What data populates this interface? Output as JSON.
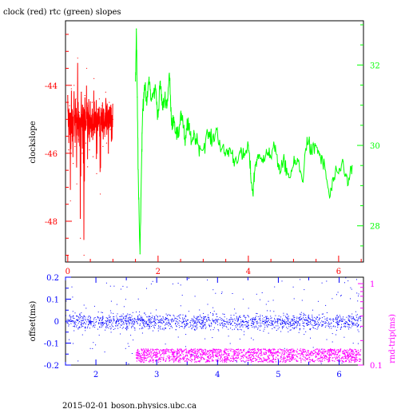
{
  "footer": "2015-02-01 boson.physics.ubc.ca",
  "colors": {
    "red": "#ff0000",
    "green": "#00ff00",
    "blue": "#0000ff",
    "magenta": "#ff00ff",
    "black": "#000000"
  },
  "chart_data": [
    {
      "type": "line",
      "title": "clock (red) rtc (green) slopes",
      "ylabel": "clockslope",
      "xlim": [
        -0.05,
        6.55
      ],
      "ylim": [
        -49.2,
        -42.1
      ],
      "y2lim": [
        27.1,
        33.1
      ],
      "xticks": [
        "0",
        "2",
        "4",
        "6"
      ],
      "yticks": [
        "-44",
        "-46",
        "-48"
      ],
      "y2ticks": [
        "32",
        "30",
        "28"
      ],
      "series": [
        {
          "color": "red",
          "axis": "left",
          "x": [
            0.0,
            0.02,
            0.04,
            0.06,
            0.08,
            0.1,
            0.12,
            0.14,
            0.16,
            0.18,
            0.2,
            0.22,
            0.24,
            0.26,
            0.28,
            0.3,
            0.32,
            0.34,
            0.36,
            0.38,
            0.4,
            0.42,
            0.44,
            0.46,
            0.48,
            0.5,
            0.52,
            0.54,
            0.56,
            0.58,
            0.6,
            0.62,
            0.64,
            0.66,
            0.68,
            0.7,
            0.72,
            0.74,
            0.76,
            0.78,
            0.8,
            0.82,
            0.84,
            0.86,
            0.88,
            0.9,
            0.92,
            0.94,
            0.96,
            0.98,
            1.0
          ],
          "y": [
            -44.3,
            -45.9,
            -44.6,
            -47.4,
            -44.1,
            -45.5,
            -46.3,
            -44.0,
            -45.8,
            -44.4,
            -46.9,
            -43.2,
            -45.6,
            -44.8,
            -48.5,
            -44.2,
            -46.0,
            -45.1,
            -49.0,
            -44.3,
            -45.7,
            -43.5,
            -46.4,
            -44.6,
            -45.9,
            -44.9,
            -45.3,
            -44.5,
            -46.1,
            -43.8,
            -45.4,
            -45.0,
            -46.6,
            -44.7,
            -45.2,
            -44.4,
            -47.2,
            -45.0,
            -44.6,
            -45.8,
            -44.9,
            -45.5,
            -44.2,
            -45.7,
            -44.8,
            -46.0,
            -44.5,
            -45.3,
            -44.9,
            -45.6,
            -45.0
          ]
        },
        {
          "color": "green",
          "axis": "right",
          "x": [
            1.5,
            1.52,
            1.54,
            1.56,
            1.6,
            1.64,
            1.66,
            1.7,
            1.75,
            1.8,
            1.85,
            1.9,
            1.95,
            2.0,
            2.05,
            2.1,
            2.15,
            2.2,
            2.25,
            2.3,
            2.35,
            2.4,
            2.45,
            2.5,
            2.55,
            2.6,
            2.65,
            2.7,
            2.75,
            2.8,
            2.9,
            3.0,
            3.1,
            3.2,
            3.3,
            3.4,
            3.5,
            3.6,
            3.7,
            3.8,
            3.9,
            4.0,
            4.05,
            4.1,
            4.15,
            4.2,
            4.3,
            4.4,
            4.5,
            4.6,
            4.7,
            4.8,
            4.9,
            5.0,
            5.1,
            5.2,
            5.3,
            5.4,
            5.5,
            5.6,
            5.7,
            5.8,
            5.9,
            6.0,
            6.1,
            6.2,
            6.3
          ],
          "y": [
            31.6,
            32.9,
            31.2,
            29.4,
            27.3,
            29.9,
            30.9,
            31.5,
            31.0,
            31.7,
            31.1,
            31.3,
            31.4,
            30.7,
            31.6,
            30.9,
            31.2,
            31.0,
            31.8,
            30.5,
            30.7,
            30.3,
            30.2,
            30.8,
            30.6,
            30.0,
            30.6,
            30.3,
            30.1,
            30.3,
            30.0,
            29.9,
            30.3,
            30.1,
            30.4,
            29.9,
            29.8,
            29.9,
            29.6,
            29.8,
            29.7,
            30.0,
            29.3,
            28.8,
            29.5,
            29.7,
            29.6,
            29.9,
            29.7,
            30.0,
            29.3,
            29.6,
            29.2,
            29.5,
            29.6,
            29.1,
            30.2,
            29.8,
            30.0,
            29.7,
            29.4,
            28.7,
            29.2,
            29.3,
            29.6,
            29.0,
            29.5
          ]
        }
      ]
    },
    {
      "type": "scatter",
      "ylabel": "offset(ms)",
      "y2label": "rnd-trip(ms)",
      "xlim": [
        1.5,
        6.4
      ],
      "ylim": [
        -0.2,
        0.2
      ],
      "y2scale": "log",
      "y2lim": [
        0.1,
        1.2
      ],
      "xticks": [
        "2",
        "3",
        "4",
        "5",
        "6"
      ],
      "yticks": [
        "0.2",
        "0.1",
        "0",
        "-0.1",
        "-0.2"
      ],
      "y2ticks": [
        "1",
        "0.1"
      ],
      "series": [
        {
          "color": "blue",
          "axis": "left",
          "x_range": [
            1.5,
            6.35
          ],
          "center": 0.0,
          "spread": 0.03,
          "outlier_range": [
            -0.2,
            0.2
          ]
        },
        {
          "color": "magenta",
          "axis": "right",
          "x_range": [
            2.65,
            6.35
          ],
          "center": 0.13,
          "spread_range": [
            0.11,
            0.16
          ]
        }
      ]
    }
  ]
}
